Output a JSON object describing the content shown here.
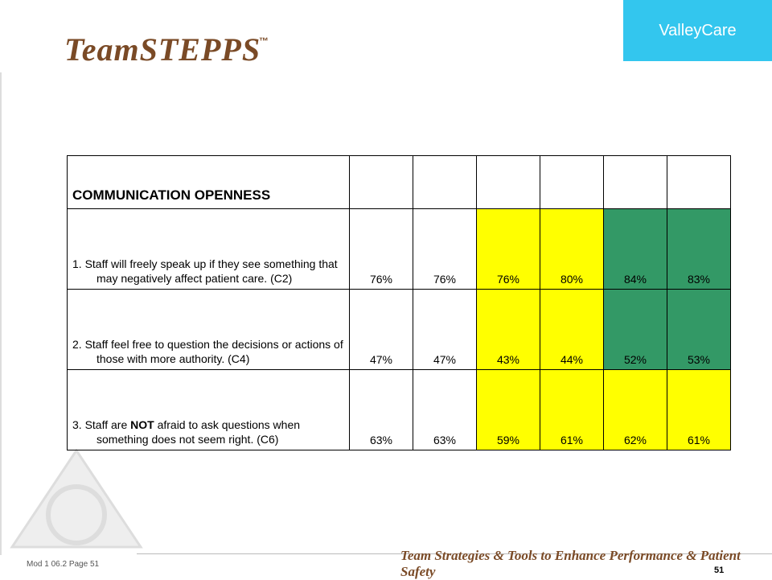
{
  "header": {
    "logo": "TeamSTEPPS",
    "trademark": "™",
    "brand": "ValleyCare"
  },
  "table": {
    "title": "COMMUNICATION OPENNESS",
    "rows": [
      {
        "text": [
          "1. Staff will freely speak up if they see something that may negatively affect patient care. (C2)"
        ],
        "values": [
          "76%",
          "76%",
          "76%",
          "80%",
          "84%",
          "83%"
        ]
      },
      {
        "text": [
          "2. Staff feel free to question the decisions or actions of those with more authority. (C4)"
        ],
        "values": [
          "47%",
          "47%",
          "43%",
          "44%",
          "52%",
          "53%"
        ]
      },
      {
        "text": [
          "3. Staff are ",
          "NOT",
          " afraid to ask questions when something does not seem right. (C6)"
        ],
        "values": [
          "63%",
          "63%",
          "59%",
          "61%",
          "62%",
          "61%"
        ]
      }
    ]
  },
  "footer": {
    "module": "Mod 1 06.2  Page 51",
    "tagline": "Team Strategies & Tools to Enhance Performance & Patient Safety",
    "page": "51"
  }
}
